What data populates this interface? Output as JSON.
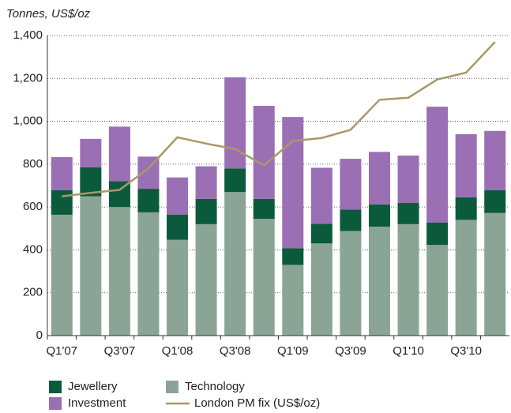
{
  "chart_data": {
    "type": "bar",
    "stacked": true,
    "y_axis_label": "Tonnes, US$/oz",
    "categories": [
      "Q1'07",
      null,
      "Q3'07",
      null,
      "Q1'08",
      null,
      "Q3'08",
      null,
      "Q1'09",
      null,
      "Q3'09",
      null,
      "Q1'10",
      null,
      "Q3'10",
      null
    ],
    "series": [
      {
        "name": "Technology",
        "color": "#8aa596",
        "values": [
          564,
          650,
          600,
          575,
          447,
          520,
          670,
          545,
          330,
          430,
          488,
          508,
          520,
          423,
          540,
          572
        ]
      },
      {
        "name": "Jewellery",
        "color": "#0b5a3c",
        "values": [
          114,
          135,
          120,
          110,
          118,
          118,
          110,
          93,
          78,
          92,
          100,
          104,
          100,
          105,
          105,
          106
        ]
      },
      {
        "name": "Investment",
        "color": "#9b6fb3",
        "values": [
          155,
          133,
          255,
          150,
          173,
          152,
          425,
          434,
          612,
          261,
          237,
          245,
          220,
          540,
          295,
          277
        ]
      },
      {
        "name": "London PM fix (US$/oz)",
        "color": "#a89968",
        "type": "line",
        "values": [
          650,
          666,
          680,
          780,
          925,
          896,
          870,
          795,
          908,
          922,
          960,
          1100,
          1110,
          1195,
          1227,
          1370
        ]
      }
    ],
    "ylim": [
      0,
      1400
    ],
    "yticks": [
      0,
      200,
      400,
      600,
      800,
      {
        "value": 1000,
        "label": "1,000"
      },
      {
        "value": 1200,
        "label": "1,200"
      },
      {
        "value": 1400,
        "label": "1,400"
      }
    ],
    "grid": true
  }
}
